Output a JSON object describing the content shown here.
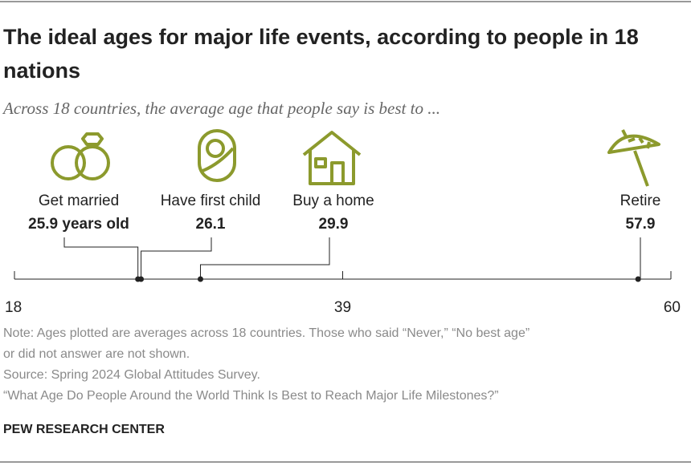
{
  "chart_data": {
    "type": "timeline",
    "title": "The ideal ages for major life events, according to people in 18 nations",
    "subtitle": "Across 18 countries, the average age that people say is best to ...",
    "categories": [
      "Get married",
      "Have first child",
      "Buy a home",
      "Retire"
    ],
    "values": [
      25.9,
      26.1,
      29.9,
      57.9
    ],
    "value_labels": [
      "25.9 years old",
      "26.1",
      "29.9",
      "57.9"
    ],
    "color": "#222222",
    "xlim": [
      18,
      60
    ],
    "xticks": [
      18,
      39,
      60
    ],
    "notes": [
      "Note: Ages plotted are averages across 18 countries. Those who said “Never,” “No best age”",
      "or did not answer are not shown.",
      "Source: Spring 2024 Global Attitudes Survey.",
      "“What Age Do People Around the World Think Is Best to Reach Major Life Milestones?”"
    ],
    "source": "PEW RESEARCH CENTER"
  }
}
